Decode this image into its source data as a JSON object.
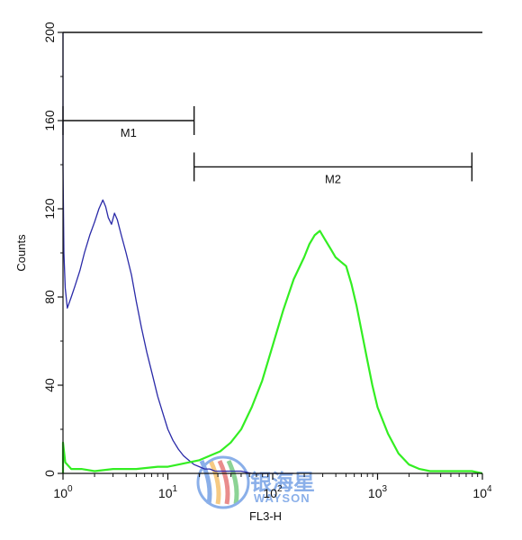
{
  "chart_data": {
    "type": "line",
    "title": "",
    "xlabel": "FL3-H",
    "ylabel": "Counts",
    "x_scale": "log",
    "xlim": [
      1,
      10000
    ],
    "ylim": [
      0,
      200
    ],
    "x_ticks": [
      {
        "value": 1,
        "base": "10",
        "exp": "0"
      },
      {
        "value": 10,
        "base": "10",
        "exp": "1"
      },
      {
        "value": 100,
        "base": "10",
        "exp": "2"
      },
      {
        "value": 1000,
        "base": "10",
        "exp": "3"
      },
      {
        "value": 10000,
        "base": "10",
        "exp": "4"
      }
    ],
    "y_ticks": [
      "0",
      "40",
      "80",
      "120",
      "160",
      "200"
    ],
    "series": [
      {
        "color": "#2a2aa8",
        "x": [
          1.0,
          1.0,
          1.02,
          1.05,
          1.1,
          1.2,
          1.3,
          1.45,
          1.6,
          1.8,
          2.0,
          2.2,
          2.4,
          2.55,
          2.7,
          2.9,
          3.1,
          3.3,
          3.6,
          4.0,
          4.5,
          5.0,
          5.6,
          6.3,
          7.1,
          8.0,
          9.0,
          10.0,
          11.2,
          12.6,
          14.1,
          15.8,
          17.8,
          20.0,
          22.4,
          25.1,
          28.2,
          31.6,
          39.8,
          50.1,
          63.1,
          79.4,
          100.0,
          125.9,
          158.5
        ],
        "y": [
          200,
          140,
          100,
          84,
          75,
          80,
          85,
          92,
          100,
          108,
          114,
          120,
          124,
          121,
          116,
          113,
          118,
          115,
          108,
          100,
          90,
          78,
          66,
          55,
          45,
          35,
          27,
          20,
          15,
          11,
          8,
          6,
          4,
          3,
          2,
          2,
          1,
          1,
          1,
          1,
          0,
          0,
          0,
          0,
          0
        ]
      },
      {
        "color": "#33ee22",
        "x": [
          1.0,
          1.0,
          1.05,
          1.2,
          1.5,
          2.0,
          3.0,
          5.0,
          8.0,
          10.0,
          12.6,
          15.8,
          20.0,
          25.1,
          31.6,
          39.8,
          50.1,
          63.1,
          79.4,
          100.0,
          125.9,
          158.5,
          199.5,
          223.9,
          251.2,
          281.8,
          316.2,
          354.8,
          398.1,
          446.7,
          501.2,
          562.3,
          631.0,
          707.9,
          794.3,
          891.3,
          1000.0,
          1258.9,
          1584.9,
          1995.3,
          2511.9,
          3162.3,
          3981.1,
          5011.9,
          6309.6,
          7943.3,
          10000.0
        ],
        "y": [
          0,
          14,
          5,
          2,
          2,
          1,
          2,
          2,
          3,
          3,
          4,
          5,
          6,
          8,
          10,
          14,
          20,
          30,
          42,
          58,
          74,
          88,
          98,
          104,
          108,
          110,
          106,
          102,
          98,
          96,
          94,
          86,
          76,
          64,
          52,
          40,
          30,
          18,
          9,
          4,
          2,
          1,
          1,
          1,
          1,
          1,
          0
        ]
      }
    ],
    "markers": [
      {
        "label": "",
        "x_start": 1,
        "x_end": 10000,
        "y": 200
      },
      {
        "label": "M1",
        "x_start": 1,
        "x_end": 17.8,
        "y": 160
      },
      {
        "label": "M2",
        "x_start": 17.8,
        "x_end": 7943,
        "y": 139
      }
    ]
  },
  "watermark": {
    "line1": "银海星",
    "line2": "WAYSON"
  }
}
